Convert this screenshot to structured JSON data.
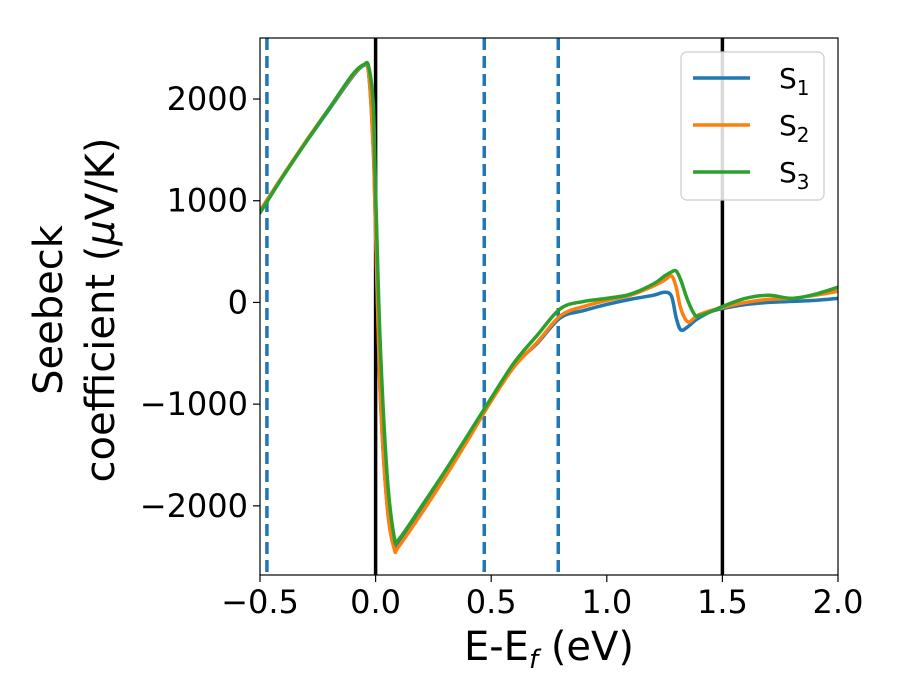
{
  "chart_data": {
    "type": "line",
    "title": "",
    "xlabel": "E-E",
    "xlabel_sub": "f",
    "xlabel_unit": " (eV)",
    "ylabel_line1": "Seebeck",
    "ylabel_line2": "coefficient  (",
    "ylabel_mu": "μ",
    "ylabel_unit": "V/K)",
    "xlim": [
      -0.5,
      2.0
    ],
    "ylim": [
      -2680,
      2600
    ],
    "xticks": [
      -0.5,
      0.0,
      0.5,
      1.0,
      1.5,
      2.0
    ],
    "xtick_labels": [
      "−0.5",
      "0.0",
      "0.5",
      "1.0",
      "1.5",
      "2.0"
    ],
    "yticks": [
      -2000,
      -1000,
      0,
      1000,
      2000
    ],
    "ytick_labels": [
      "−2000",
      "−1000",
      "0",
      "1000",
      "2000"
    ],
    "grid": false,
    "legend_position": "top-right",
    "vlines_solid": {
      "x": [
        0.0,
        1.5
      ],
      "color": "#000000"
    },
    "vlines_dashed": {
      "x": [
        -0.47,
        0.47,
        0.79
      ],
      "color": "#1f77b4"
    },
    "series": [
      {
        "name": "S",
        "sub": "1",
        "color": "#1f77b4",
        "x": [
          -0.5,
          -0.4,
          -0.3,
          -0.2,
          -0.1,
          -0.05,
          -0.03,
          -0.01,
          0.0,
          0.02,
          0.05,
          0.08,
          0.1,
          0.2,
          0.3,
          0.4,
          0.5,
          0.6,
          0.7,
          0.8,
          0.9,
          1.0,
          1.1,
          1.2,
          1.25,
          1.28,
          1.3,
          1.32,
          1.35,
          1.38,
          1.4,
          1.45,
          1.5,
          1.6,
          1.7,
          1.8,
          1.9,
          2.0
        ],
        "y": [
          900,
          1250,
          1580,
          1900,
          2220,
          2330,
          2250,
          1500,
          700,
          -900,
          -2000,
          -2400,
          -2380,
          -2050,
          -1700,
          -1330,
          -960,
          -620,
          -400,
          -150,
          -80,
          -20,
          30,
          70,
          100,
          60,
          -150,
          -270,
          -240,
          -180,
          -150,
          -90,
          -60,
          -20,
          0,
          10,
          20,
          40
        ]
      },
      {
        "name": "S",
        "sub": "2",
        "color": "#ff7f0e",
        "x": [
          -0.5,
          -0.4,
          -0.3,
          -0.2,
          -0.1,
          -0.05,
          -0.03,
          -0.01,
          0.0,
          0.02,
          0.05,
          0.08,
          0.1,
          0.2,
          0.3,
          0.4,
          0.5,
          0.6,
          0.7,
          0.8,
          0.9,
          1.0,
          1.1,
          1.2,
          1.25,
          1.28,
          1.3,
          1.32,
          1.35,
          1.38,
          1.4,
          1.45,
          1.5,
          1.6,
          1.7,
          1.8,
          1.9,
          2.0
        ],
        "y": [
          900,
          1250,
          1590,
          1910,
          2230,
          2335,
          2260,
          1520,
          720,
          -880,
          -2000,
          -2420,
          -2400,
          -2070,
          -1720,
          -1350,
          -970,
          -630,
          -390,
          -130,
          -40,
          20,
          70,
          160,
          220,
          260,
          150,
          -60,
          -190,
          -150,
          -120,
          -80,
          -50,
          0,
          30,
          40,
          70,
          110
        ]
      },
      {
        "name": "S",
        "sub": "3",
        "color": "#2ca02c",
        "x": [
          -0.5,
          -0.4,
          -0.3,
          -0.2,
          -0.1,
          -0.05,
          -0.03,
          -0.01,
          0.0,
          0.02,
          0.05,
          0.08,
          0.1,
          0.2,
          0.3,
          0.4,
          0.5,
          0.6,
          0.7,
          0.8,
          0.9,
          1.0,
          1.1,
          1.2,
          1.25,
          1.28,
          1.3,
          1.32,
          1.35,
          1.38,
          1.4,
          1.45,
          1.5,
          1.6,
          1.7,
          1.8,
          1.9,
          2.0
        ],
        "y": [
          880,
          1240,
          1580,
          1910,
          2240,
          2340,
          2320,
          1950,
          1100,
          -400,
          -1700,
          -2300,
          -2330,
          -2000,
          -1660,
          -1300,
          -940,
          -590,
          -320,
          -60,
          10,
          40,
          80,
          180,
          260,
          300,
          310,
          220,
          20,
          -120,
          -130,
          -90,
          -40,
          40,
          70,
          40,
          80,
          150
        ]
      }
    ]
  }
}
